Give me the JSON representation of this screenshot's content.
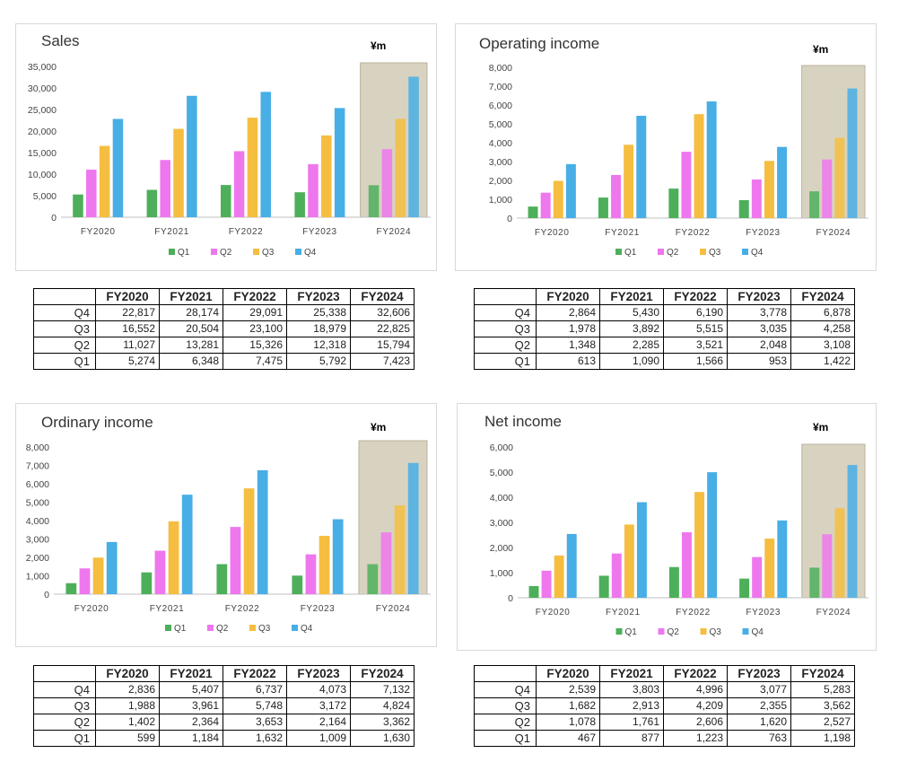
{
  "colors": {
    "Q1": "#4daf5a",
    "Q2": "#ee77ee",
    "Q3": "#f5be41",
    "Q4": "#48aee6",
    "highlight": "#d8d3c0"
  },
  "chart_data": [
    {
      "type": "bar",
      "title": "Sales",
      "unit": "¥m",
      "categories": [
        "FY2020",
        "FY2021",
        "FY2022",
        "FY2023",
        "FY2024"
      ],
      "ylim": [
        0,
        35000
      ],
      "yticks": [
        "0",
        "5,000",
        "10,000",
        "15,000",
        "20,000",
        "25,000",
        "30,000",
        "35,000"
      ],
      "highlight_category": "FY2024",
      "legend_position": "bottom",
      "series": [
        {
          "name": "Q1",
          "values": [
            5274,
            6348,
            7475,
            5792,
            7423
          ]
        },
        {
          "name": "Q2",
          "values": [
            11027,
            13281,
            15326,
            12318,
            15794
          ]
        },
        {
          "name": "Q3",
          "values": [
            16552,
            20504,
            23100,
            18979,
            22825
          ]
        },
        {
          "name": "Q4",
          "values": [
            22817,
            28174,
            29091,
            25338,
            32606
          ]
        }
      ],
      "table": {
        "header": [
          "FY2020",
          "FY2021",
          "FY2022",
          "FY2023",
          "FY2024"
        ],
        "rows": [
          {
            "label": "Q4",
            "cells": [
              "22,817",
              "28,174",
              "29,091",
              "25,338",
              "32,606"
            ]
          },
          {
            "label": "Q3",
            "cells": [
              "16,552",
              "20,504",
              "23,100",
              "18,979",
              "22,825"
            ]
          },
          {
            "label": "Q2",
            "cells": [
              "11,027",
              "13,281",
              "15,326",
              "12,318",
              "15,794"
            ]
          },
          {
            "label": "Q1",
            "cells": [
              "5,274",
              "6,348",
              "7,475",
              "5,792",
              "7,423"
            ]
          }
        ]
      }
    },
    {
      "type": "bar",
      "title": "Operating income",
      "unit": "¥m",
      "categories": [
        "FY2020",
        "FY2021",
        "FY2022",
        "FY2023",
        "FY2024"
      ],
      "ylim": [
        0,
        8000
      ],
      "yticks": [
        "0",
        "1,000",
        "2,000",
        "3,000",
        "4,000",
        "5,000",
        "6,000",
        "7,000",
        "8,000"
      ],
      "highlight_category": "FY2024",
      "legend_position": "bottom",
      "series": [
        {
          "name": "Q1",
          "values": [
            613,
            1090,
            1566,
            953,
            1422
          ]
        },
        {
          "name": "Q2",
          "values": [
            1348,
            2285,
            3521,
            2048,
            3108
          ]
        },
        {
          "name": "Q3",
          "values": [
            1978,
            3892,
            5515,
            3035,
            4258
          ]
        },
        {
          "name": "Q4",
          "values": [
            2864,
            5430,
            6190,
            3778,
            6878
          ]
        }
      ],
      "table": {
        "header": [
          "FY2020",
          "FY2021",
          "FY2022",
          "FY2023",
          "FY2024"
        ],
        "rows": [
          {
            "label": "Q4",
            "cells": [
              "2,864",
              "5,430",
              "6,190",
              "3,778",
              "6,878"
            ]
          },
          {
            "label": "Q3",
            "cells": [
              "1,978",
              "3,892",
              "5,515",
              "3,035",
              "4,258"
            ]
          },
          {
            "label": "Q2",
            "cells": [
              "1,348",
              "2,285",
              "3,521",
              "2,048",
              "3,108"
            ]
          },
          {
            "label": "Q1",
            "cells": [
              "613",
              "1,090",
              "1,566",
              "953",
              "1,422"
            ]
          }
        ]
      }
    },
    {
      "type": "bar",
      "title": "Ordinary income",
      "unit": "¥m",
      "categories": [
        "FY2020",
        "FY2021",
        "FY2022",
        "FY2023",
        "FY2024"
      ],
      "ylim": [
        0,
        8000
      ],
      "yticks": [
        "0",
        "1,000",
        "2,000",
        "3,000",
        "4,000",
        "5,000",
        "6,000",
        "7,000",
        "8,000"
      ],
      "highlight_category": "FY2024",
      "legend_position": "bottom",
      "series": [
        {
          "name": "Q1",
          "values": [
            599,
            1184,
            1632,
            1009,
            1630
          ]
        },
        {
          "name": "Q2",
          "values": [
            1402,
            2364,
            3653,
            2164,
            3362
          ]
        },
        {
          "name": "Q3",
          "values": [
            1988,
            3961,
            5748,
            3172,
            4824
          ]
        },
        {
          "name": "Q4",
          "values": [
            2836,
            5407,
            6737,
            4073,
            7132
          ]
        }
      ],
      "table": {
        "header": [
          "FY2020",
          "FY2021",
          "FY2022",
          "FY2023",
          "FY2024"
        ],
        "rows": [
          {
            "label": "Q4",
            "cells": [
              "2,836",
              "5,407",
              "6,737",
              "4,073",
              "7,132"
            ]
          },
          {
            "label": "Q3",
            "cells": [
              "1,988",
              "3,961",
              "5,748",
              "3,172",
              "4,824"
            ]
          },
          {
            "label": "Q2",
            "cells": [
              "1,402",
              "2,364",
              "3,653",
              "2,164",
              "3,362"
            ]
          },
          {
            "label": "Q1",
            "cells": [
              "599",
              "1,184",
              "1,632",
              "1,009",
              "1,630"
            ]
          }
        ]
      }
    },
    {
      "type": "bar",
      "title": "Net income",
      "unit": "¥m",
      "categories": [
        "FY2020",
        "FY2021",
        "FY2022",
        "FY2023",
        "FY2024"
      ],
      "ylim": [
        0,
        6000
      ],
      "yticks": [
        "0",
        "1,000",
        "2,000",
        "3,000",
        "4,000",
        "5,000",
        "6,000"
      ],
      "highlight_category": "FY2024",
      "legend_position": "bottom",
      "series": [
        {
          "name": "Q1",
          "values": [
            467,
            877,
            1223,
            763,
            1198
          ]
        },
        {
          "name": "Q2",
          "values": [
            1078,
            1761,
            2606,
            1620,
            2527
          ]
        },
        {
          "name": "Q3",
          "values": [
            1682,
            2913,
            4209,
            2355,
            3562
          ]
        },
        {
          "name": "Q4",
          "values": [
            2539,
            3803,
            4996,
            3077,
            5283
          ]
        }
      ],
      "table": {
        "header": [
          "FY2020",
          "FY2021",
          "FY2022",
          "FY2023",
          "FY2024"
        ],
        "rows": [
          {
            "label": "Q4",
            "cells": [
              "2,539",
              "3,803",
              "4,996",
              "3,077",
              "5,283"
            ]
          },
          {
            "label": "Q3",
            "cells": [
              "1,682",
              "2,913",
              "4,209",
              "2,355",
              "3,562"
            ]
          },
          {
            "label": "Q2",
            "cells": [
              "1,078",
              "1,761",
              "2,606",
              "1,620",
              "2,527"
            ]
          },
          {
            "label": "Q1",
            "cells": [
              "467",
              "877",
              "1,223",
              "763",
              "1,198"
            ]
          }
        ]
      }
    }
  ]
}
